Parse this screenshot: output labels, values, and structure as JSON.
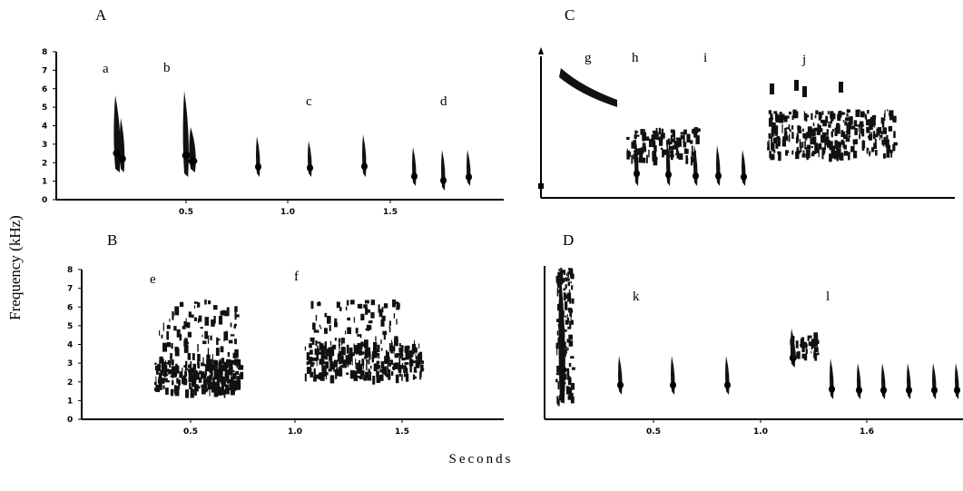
{
  "ylabel": "Frequency (kHz)",
  "xlabel": "Seconds",
  "panels": [
    {
      "label": "A",
      "yticks": [
        "0",
        "1",
        "2",
        "3",
        "4",
        "5",
        "6",
        "7",
        "8"
      ],
      "xticks": [
        "0.5",
        "1.0",
        "1.5"
      ],
      "syllables": [
        "a",
        "b",
        "c",
        "d"
      ]
    },
    {
      "label": "B",
      "yticks": [
        "0",
        "1",
        "2",
        "3",
        "4",
        "5",
        "6",
        "7",
        "8"
      ],
      "xticks": [
        "0.5",
        "1.0",
        "1.5"
      ],
      "syllables": [
        "e",
        "f"
      ]
    },
    {
      "label": "C",
      "syllables": [
        "g",
        "h",
        "i",
        "j"
      ]
    },
    {
      "label": "D",
      "xticks": [
        "0.5",
        "1.0",
        "1.6"
      ],
      "syllables": [
        "k",
        "l"
      ]
    }
  ]
}
